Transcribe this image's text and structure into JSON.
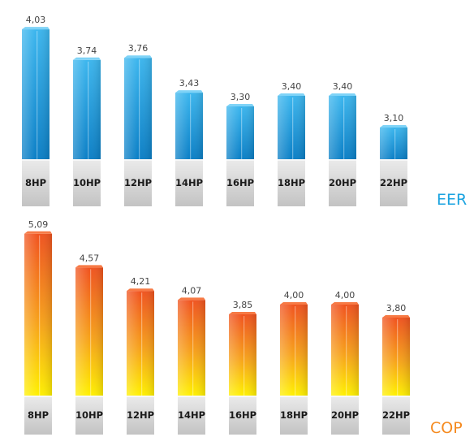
{
  "chart_data": [
    {
      "type": "bar",
      "title": "EER",
      "categories": [
        "8HP",
        "10HP",
        "12HP",
        "14HP",
        "16HP",
        "18HP",
        "20HP",
        "22HP"
      ],
      "values": [
        4.03,
        3.74,
        3.76,
        3.43,
        3.3,
        3.4,
        3.4,
        3.1
      ],
      "value_labels": [
        "4,03",
        "3,74",
        "3,76",
        "3,43",
        "3,30",
        "3,40",
        "3,40",
        "3,10"
      ],
      "colors": {
        "top": "#3cb6ee",
        "bottom": "#0b7fc6",
        "title": "#1aa3e0"
      },
      "grid": false,
      "legend": "none"
    },
    {
      "type": "bar",
      "title": "COP",
      "categories": [
        "8HP",
        "10HP",
        "12HP",
        "14HP",
        "16HP",
        "18HP",
        "20HP",
        "22HP"
      ],
      "values": [
        5.09,
        4.57,
        4.21,
        4.07,
        3.85,
        4.0,
        4.0,
        3.8
      ],
      "value_labels": [
        "5,09",
        "4,57",
        "4,21",
        "4,07",
        "3,85",
        "4,00",
        "4,00",
        "3,80"
      ],
      "colors": {
        "top": "#f0531f",
        "bottom": "#fff000",
        "title": "#f58a1f"
      },
      "grid": false,
      "legend": "none"
    }
  ],
  "colors": {
    "base_top": "#ebebeb",
    "base_bottom": "#c3c3c3"
  }
}
